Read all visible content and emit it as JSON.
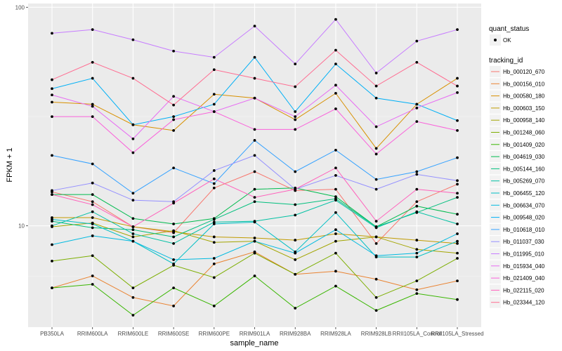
{
  "chart_data": {
    "type": "line",
    "title": "",
    "xlabel": "sample_name",
    "ylabel": "FPKM + 1",
    "yscale": "log10",
    "ylim": [
      3.44,
      104
    ],
    "y_ticks": [
      {
        "value": 10,
        "label": "10"
      },
      {
        "value": 100,
        "label": "100"
      }
    ],
    "grid": true,
    "legend_position": "right",
    "categories": [
      "PB350LA",
      "RRIM600LA",
      "RRIM600LE",
      "RRIM600SE",
      "RRIM600PE",
      "RRIM901LA",
      "RRIM928BA",
      "RRIM928LA",
      "RRIM928LB",
      "RRII105LA_Control",
      "RRII105LA_Stressed"
    ],
    "shape_legend": {
      "title": "quant_status",
      "items": [
        {
          "label": "OK"
        }
      ]
    },
    "color_legend_title": "tracking_id",
    "series": [
      {
        "name": "Hb_000120_670",
        "color": "#F8766D",
        "values": [
          14.3,
          12.9,
          9.9,
          9.3,
          14.9,
          17.7,
          14.5,
          14.7,
          8.3,
          12.9,
          15.5
        ]
      },
      {
        "name": "Hb_000156_010",
        "color": "#EA8331",
        "values": [
          5.2,
          5.9,
          4.7,
          4.3,
          6.7,
          7.6,
          6.0,
          6.2,
          5.7,
          5.1,
          5.6
        ]
      },
      {
        "name": "Hb_000580_180",
        "color": "#D89000",
        "values": [
          36.8,
          36.0,
          29.0,
          27.3,
          40.0,
          38.4,
          30.6,
          40.4,
          22.6,
          36.0,
          47.3
        ]
      },
      {
        "name": "Hb_000603_150",
        "color": "#C09B00",
        "values": [
          10.9,
          10.9,
          9.9,
          9.4,
          8.9,
          8.8,
          8.6,
          9.2,
          8.9,
          8.6,
          8.3
        ]
      },
      {
        "name": "Hb_000958_140",
        "color": "#A3A500",
        "values": [
          9.9,
          10.3,
          8.9,
          9.5,
          8.4,
          8.5,
          7.0,
          8.5,
          8.9,
          7.8,
          7.5
        ]
      },
      {
        "name": "Hb_001248_060",
        "color": "#7CAE00",
        "values": [
          6.9,
          7.3,
          5.2,
          6.6,
          5.8,
          7.5,
          6.0,
          7.5,
          4.7,
          5.6,
          7.1
        ]
      },
      {
        "name": "Hb_001409_020",
        "color": "#39B600",
        "values": [
          5.2,
          5.4,
          3.9,
          5.2,
          4.3,
          5.9,
          4.2,
          5.3,
          4.1,
          4.9,
          4.6
        ]
      },
      {
        "name": "Hb_004619_030",
        "color": "#00BB4E",
        "values": [
          13.9,
          13.9,
          10.8,
          10.2,
          10.8,
          14.7,
          14.9,
          13.6,
          9.9,
          12.3,
          11.3
        ]
      },
      {
        "name": "Hb_005144_160",
        "color": "#00BF7D",
        "values": [
          10.5,
          9.8,
          9.6,
          8.9,
          10.7,
          12.9,
          12.5,
          13.3,
          9.9,
          11.5,
          13.5
        ]
      },
      {
        "name": "Hb_005269_070",
        "color": "#00C1A3",
        "values": [
          10.0,
          11.6,
          9.2,
          8.3,
          10.4,
          10.5,
          11.2,
          13.1,
          9.8,
          11.6,
          10.2
        ]
      },
      {
        "name": "Hb_006455_120",
        "color": "#00BFC4",
        "values": [
          10.7,
          10.2,
          8.5,
          6.7,
          10.2,
          10.4,
          7.6,
          11.5,
          7.2,
          7.2,
          8.5
        ]
      },
      {
        "name": "Hb_006634_070",
        "color": "#00BAE0",
        "values": [
          8.2,
          9.0,
          8.5,
          7.0,
          7.1,
          8.5,
          7.5,
          9.6,
          7.3,
          7.5,
          9.2
        ]
      },
      {
        "name": "Hb_009548_020",
        "color": "#00B0F6",
        "values": [
          42.4,
          47.3,
          29.0,
          31.6,
          36.0,
          59.0,
          33.3,
          55.0,
          38.4,
          36.0,
          30.3
        ]
      },
      {
        "name": "Hb_010618_010",
        "color": "#35A2FF",
        "values": [
          21.0,
          19.2,
          14.1,
          18.4,
          15.6,
          24.6,
          17.7,
          22.2,
          16.3,
          17.7,
          20.5
        ]
      },
      {
        "name": "Hb_011037_030",
        "color": "#9590FF",
        "values": [
          14.5,
          15.7,
          13.1,
          12.9,
          17.9,
          21.0,
          14.7,
          17.0,
          14.7,
          17.2,
          16.1
        ]
      },
      {
        "name": "Hb_011995_010",
        "color": "#C77CFF",
        "values": [
          76,
          79,
          71,
          63,
          59,
          82,
          55,
          88,
          50,
          70,
          79
        ]
      },
      {
        "name": "Hb_015934_040",
        "color": "#E76BF3",
        "values": [
          39.7,
          35.2,
          25.0,
          39.1,
          33.3,
          38.4,
          31.6,
          44.0,
          28.4,
          34.6,
          40.7
        ]
      },
      {
        "name": "Hb_021409_040",
        "color": "#FA62DB",
        "values": [
          31.6,
          31.6,
          21.6,
          30.6,
          33.3,
          27.6,
          27.6,
          34.3,
          21.3,
          30.0,
          27.3
        ]
      },
      {
        "name": "Hb_022115_020",
        "color": "#FF62BC",
        "values": [
          13.9,
          12.5,
          9.9,
          12.7,
          16.4,
          13.5,
          14.7,
          18.4,
          10.5,
          14.7,
          14.1
        ]
      },
      {
        "name": "Hb_023344_120",
        "color": "#FF6C91",
        "values": [
          46.6,
          56.0,
          47.3,
          35.7,
          51.8,
          47.3,
          43.3,
          63.6,
          43.6,
          56.0,
          43.6
        ]
      }
    ]
  }
}
